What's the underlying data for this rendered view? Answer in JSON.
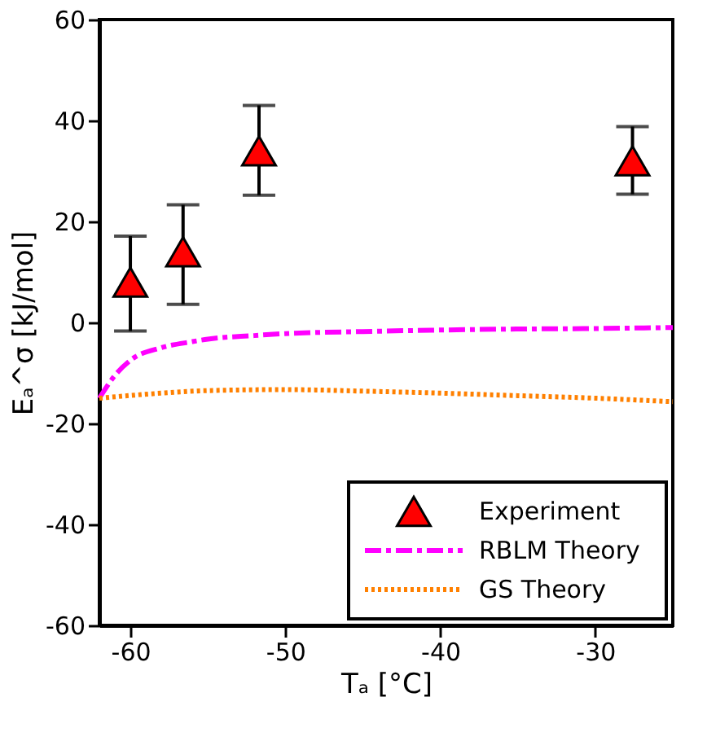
{
  "chart_data": {
    "type": "scatter",
    "xlabel": "Tₐ [°C]",
    "ylabel": "Eₐ^σ [kJ/mol]",
    "xlim": [
      -62,
      -25
    ],
    "xticks": [
      -60,
      -50,
      -40,
      -30
    ],
    "ylim": [
      -60,
      60
    ],
    "yticks": [
      -60,
      -40,
      -20,
      0,
      20,
      40,
      60
    ],
    "grid": false,
    "legend": "bottom right",
    "series": [
      {
        "name": "Experiment",
        "marker": "triangle",
        "color": "#ff0000",
        "x": [
          -60,
          -56.6,
          -51.7,
          -27.6
        ],
        "values": [
          8,
          14,
          34,
          32
        ],
        "errors": [
          [
            -1.7,
            17.1
          ],
          [
            3.6,
            23.3
          ],
          [
            25.2,
            43
          ],
          [
            25.4,
            38.8
          ]
        ]
      },
      {
        "name": "RBLM Theory",
        "type": "line",
        "line_style": "dashed",
        "color": "#ff00ff",
        "x": [
          -62,
          -61,
          -60,
          -58,
          -56,
          -55,
          -52,
          -50,
          -45,
          -40,
          -35,
          -30,
          -25
        ],
        "values": [
          -15,
          -10.5,
          -7.5,
          -5,
          -3.8,
          -3.3,
          -2.6,
          -2.2,
          -1.8,
          -1.5,
          -1.3,
          -1.2,
          -1
        ]
      },
      {
        "name": "GS Theory",
        "type": "line",
        "line_style": "dotted",
        "color": "#ff8000",
        "x": [
          -62,
          -58,
          -55,
          -50,
          -45,
          -40,
          -35,
          -30,
          -25
        ],
        "values": [
          -15,
          -14,
          -13.5,
          -13.3,
          -13.6,
          -14,
          -14.5,
          -15,
          -15.7
        ]
      }
    ]
  }
}
